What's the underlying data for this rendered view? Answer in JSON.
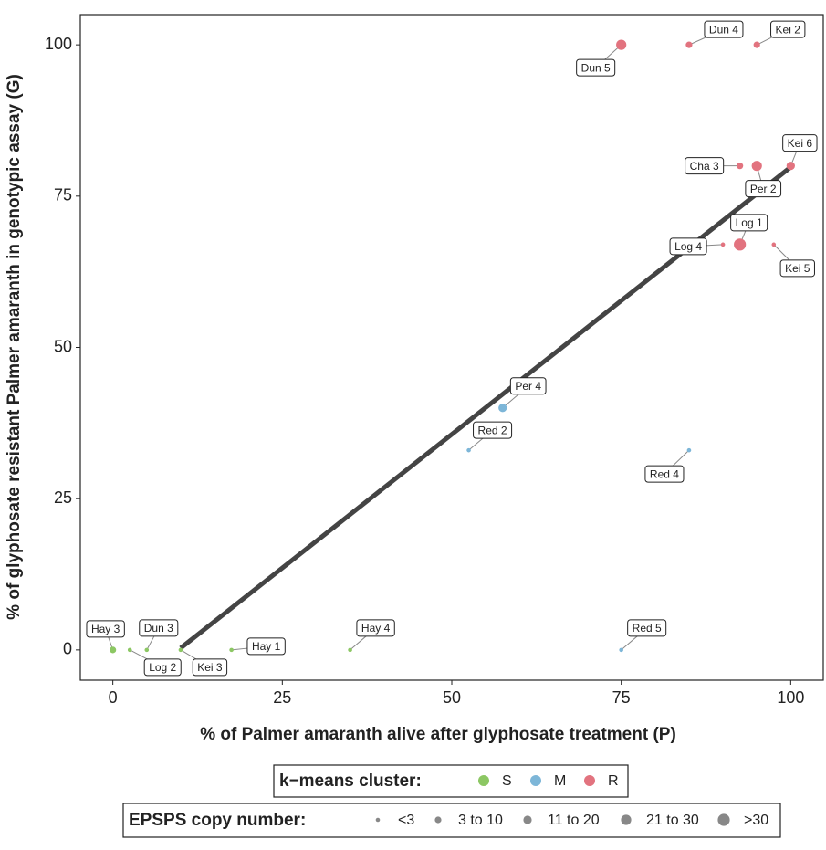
{
  "chart_data": {
    "type": "scatter",
    "xlabel": "% of Palmer amaranth alive after glyphosate treatment (P)",
    "ylabel": "% of glyphosate resistant Palmer amaranth in genotypic assay (G)",
    "xlim": [
      -4.8,
      104.8
    ],
    "ylim": [
      -5,
      105
    ],
    "xticks": [
      0,
      25,
      50,
      75,
      100
    ],
    "yticks": [
      0,
      25,
      50,
      75,
      100
    ],
    "clusters": {
      "title": "k−means cluster:",
      "names": [
        "S",
        "M",
        "R"
      ],
      "colors": [
        "#8cc763",
        "#7db6d8",
        "#e2737f"
      ]
    },
    "sizes": {
      "title": "EPSPS copy number:",
      "names": [
        "<3",
        "3 to 10",
        "11 to 20",
        "21 to 30",
        ">30"
      ]
    },
    "points": [
      {
        "label": "Hay 3",
        "x": 0,
        "y": 0,
        "cluster": "S",
        "size": "3 to 10"
      },
      {
        "label": "Log 2",
        "x": 2.5,
        "y": 0,
        "cluster": "S",
        "size": "<3"
      },
      {
        "label": "Dun 3",
        "x": 5,
        "y": 0,
        "cluster": "S",
        "size": "<3"
      },
      {
        "label": "Kei 3",
        "x": 10,
        "y": 0,
        "cluster": "S",
        "size": "<3"
      },
      {
        "label": "Hay 1",
        "x": 17.5,
        "y": 0,
        "cluster": "S",
        "size": "<3"
      },
      {
        "label": "Hay 4",
        "x": 35,
        "y": 0,
        "cluster": "S",
        "size": "<3"
      },
      {
        "label": "Red 5",
        "x": 75,
        "y": 0,
        "cluster": "M",
        "size": "<3"
      },
      {
        "label": "Red 2",
        "x": 52.5,
        "y": 33,
        "cluster": "M",
        "size": "<3"
      },
      {
        "label": "Per 4",
        "x": 57.5,
        "y": 40,
        "cluster": "M",
        "size": "11 to 20"
      },
      {
        "label": "Red 4",
        "x": 85,
        "y": 33,
        "cluster": "M",
        "size": "<3"
      },
      {
        "label": "Dun 5",
        "x": 75,
        "y": 100,
        "cluster": "R",
        "size": "21 to 30"
      },
      {
        "label": "Dun 4",
        "x": 85,
        "y": 100,
        "cluster": "R",
        "size": "3 to 10"
      },
      {
        "label": "Kei 2",
        "x": 95,
        "y": 100,
        "cluster": "R",
        "size": "3 to 10"
      },
      {
        "label": "Cha 3",
        "x": 92.5,
        "y": 80,
        "cluster": "R",
        "size": "3 to 10"
      },
      {
        "label": "Per 2",
        "x": 95,
        "y": 80,
        "cluster": "R",
        "size": "21 to 30"
      },
      {
        "label": "Kei 6",
        "x": 100,
        "y": 80,
        "cluster": "R",
        "size": "11 to 20"
      },
      {
        "label": "Log 4",
        "x": 90,
        "y": 67,
        "cluster": "R",
        "size": "<3"
      },
      {
        "label": "Log 1",
        "x": 92.5,
        "y": 67,
        "cluster": "R",
        "size": ">30"
      },
      {
        "label": "Kei 5",
        "x": 97.5,
        "y": 67,
        "cluster": "R",
        "size": "<3"
      }
    ],
    "fit": {
      "x": [
        10,
        100
      ],
      "y": [
        0.3,
        79.8
      ],
      "color": "#444444"
    }
  }
}
